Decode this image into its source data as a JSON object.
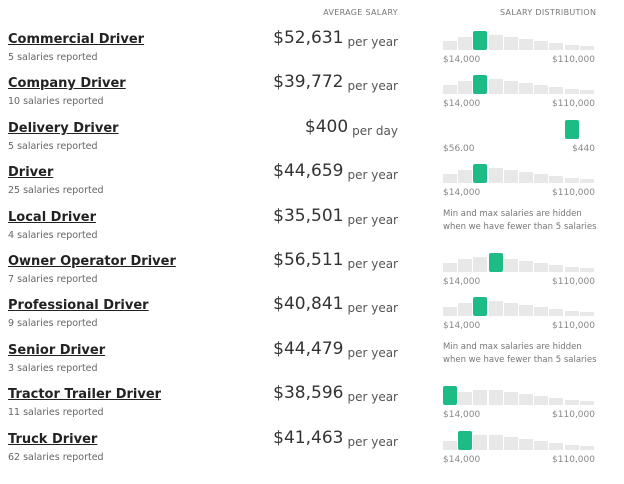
{
  "header": {
    "average_salary": "AVERAGE SALARY",
    "salary_distribution": "SALARY DISTRIBUTION"
  },
  "rows": [
    {
      "title": "Commercial Driver",
      "reports": "5 salaries reported",
      "salary": "$52,631",
      "period": "per year",
      "min": "$14,000",
      "max": "$110,000"
    },
    {
      "title": "Company Driver",
      "reports": "10 salaries reported",
      "salary": "$39,772",
      "period": "per year",
      "min": "$14,000",
      "max": "$110,000"
    },
    {
      "title": "Delivery Driver",
      "reports": "5 salaries reported",
      "salary": "$400",
      "period": "per day",
      "min": "$56.00",
      "max": "$440"
    },
    {
      "title": "Driver",
      "reports": "25 salaries reported",
      "salary": "$44,659",
      "period": "per year",
      "min": "$14,000",
      "max": "$110,000"
    },
    {
      "title": "Local Driver",
      "reports": "4 salaries reported",
      "salary": "$35,501",
      "period": "per year",
      "note": "Min and max salaries are hidden when we have fewer than 5 salaries"
    },
    {
      "title": "Owner Operator Driver",
      "reports": "7 salaries reported",
      "salary": "$56,511",
      "period": "per year",
      "min": "$14,000",
      "max": "$110,000"
    },
    {
      "title": "Professional Driver",
      "reports": "9 salaries reported",
      "salary": "$40,841",
      "period": "per year",
      "min": "$14,000",
      "max": "$110,000"
    },
    {
      "title": "Senior Driver",
      "reports": "3 salaries reported",
      "salary": "$44,479",
      "period": "per year",
      "note": "Min and max salaries are hidden when we have fewer than 5 salaries"
    },
    {
      "title": "Tractor Trailer Driver",
      "reports": "11 salaries reported",
      "salary": "$38,596",
      "period": "per year",
      "min": "$14,000",
      "max": "$110,000"
    },
    {
      "title": "Truck Driver",
      "reports": "62 salaries reported",
      "salary": "$41,463",
      "period": "per year",
      "min": "$14,000",
      "max": "$110,000"
    }
  ]
}
